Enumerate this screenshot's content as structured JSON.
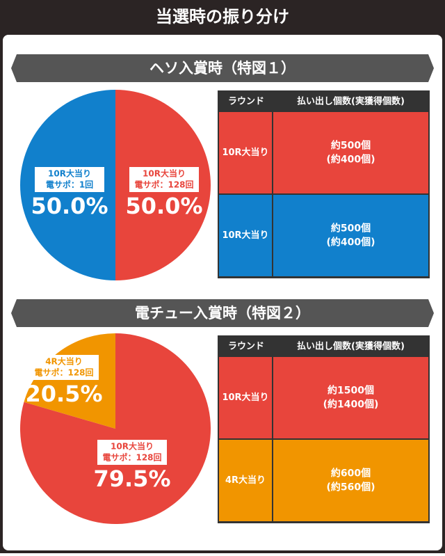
{
  "header": {
    "title": "当選時の振り分け"
  },
  "chart_data": [
    {
      "type": "pie",
      "title": "ヘソ入賞時（特図１）",
      "labels": [
        [
          "10R大当り",
          "電サポ：128回"
        ],
        [
          "10R大当り",
          "電サポ：1回"
        ]
      ],
      "values": [
        50.0,
        50.0
      ],
      "value_labels": [
        "50.0%",
        "50.0%"
      ],
      "colors": [
        "#e8453c",
        "#1180cc"
      ]
    },
    {
      "type": "pie",
      "title": "電チュー入賞時（特図２）",
      "labels": [
        [
          "10R大当り",
          "電サポ：128回"
        ],
        [
          "4R大当り",
          "電サポ：128回"
        ]
      ],
      "values": [
        79.5,
        20.5
      ],
      "value_labels": [
        "79.5%",
        "20.5%"
      ],
      "colors": [
        "#e8453c",
        "#f19500"
      ]
    }
  ],
  "tables": [
    {
      "header": [
        "ラウンド",
        "払い出し個数(実獲得個数)"
      ],
      "rows": [
        [
          "10R大当り",
          "約500個",
          "(約400個)"
        ],
        [
          "10R大当り",
          "約500個",
          "(約400個)"
        ]
      ],
      "row_colors": [
        "#e8453c",
        "#1180cc"
      ]
    },
    {
      "header": [
        "ラウンド",
        "払い出し個数(実獲得個数)"
      ],
      "rows": [
        [
          "10R大当り",
          "約1500個",
          "(約1400個)"
        ],
        [
          "4R大当り",
          "約600個",
          "(約560個)"
        ]
      ],
      "row_colors": [
        "#e8453c",
        "#f19500"
      ]
    }
  ]
}
